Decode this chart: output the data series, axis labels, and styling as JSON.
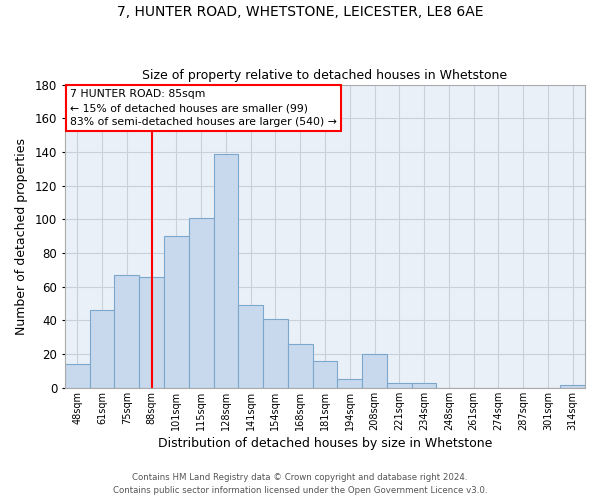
{
  "title": "7, HUNTER ROAD, WHETSTONE, LEICESTER, LE8 6AE",
  "subtitle": "Size of property relative to detached houses in Whetstone",
  "xlabel": "Distribution of detached houses by size in Whetstone",
  "ylabel": "Number of detached properties",
  "bar_labels": [
    "48sqm",
    "61sqm",
    "75sqm",
    "88sqm",
    "101sqm",
    "115sqm",
    "128sqm",
    "141sqm",
    "154sqm",
    "168sqm",
    "181sqm",
    "194sqm",
    "208sqm",
    "221sqm",
    "234sqm",
    "248sqm",
    "261sqm",
    "274sqm",
    "287sqm",
    "301sqm",
    "314sqm"
  ],
  "bar_values": [
    14,
    46,
    67,
    66,
    90,
    101,
    139,
    49,
    41,
    26,
    16,
    5,
    20,
    3,
    3,
    0,
    0,
    0,
    0,
    0,
    2
  ],
  "bar_color": "#c9d9ed",
  "bar_edge_color": "#7ba7cc",
  "vline_x": 3,
  "vline_color": "red",
  "ylim": [
    0,
    180
  ],
  "yticks": [
    0,
    20,
    40,
    60,
    80,
    100,
    120,
    140,
    160,
    180
  ],
  "annotation_line1": "7 HUNTER ROAD: 85sqm",
  "annotation_line2": "← 15% of detached houses are smaller (99)",
  "annotation_line3": "83% of semi-detached houses are larger (540) →",
  "footer_line1": "Contains HM Land Registry data © Crown copyright and database right 2024.",
  "footer_line2": "Contains public sector information licensed under the Open Government Licence v3.0.",
  "background_color": "#ffffff",
  "plot_bg_color": "#eaf0f8",
  "grid_color": "#c8d0dc"
}
